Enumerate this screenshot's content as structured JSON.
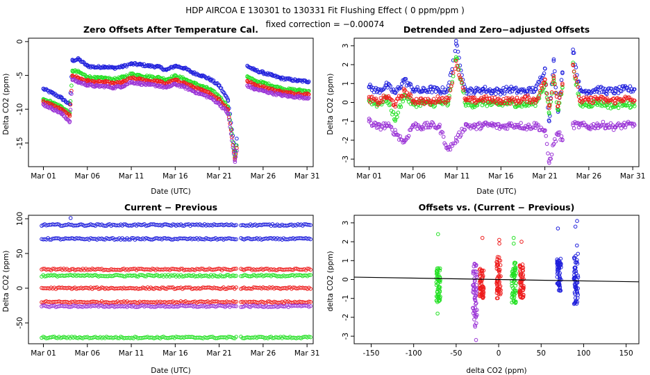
{
  "figure": {
    "title_line1": "HDP    AIRCOA E    130301 to 130331    Fit Flushing Effect ( 0 ppm/ppm )",
    "title_line2": "fixed correction = −0.00074"
  },
  "colors": {
    "blue": "#1f1fdc",
    "green": "#22e022",
    "red": "#ee1c1c",
    "purple": "#9a33d6",
    "black": "#000000"
  },
  "chart_data": [
    {
      "id": "zero-offsets",
      "type": "scatter",
      "title": "Zero Offsets After Temperature Cal.",
      "xlabel": "Date (UTC)",
      "ylabel": "Delta CO2 (ppm)",
      "xlim": [
        -0.7,
        31.7
      ],
      "ylim": [
        -18.5,
        0.5
      ],
      "xticks": [
        1,
        6,
        11,
        16,
        21,
        26,
        31
      ],
      "xtick_labels": [
        "Mar 01",
        "Mar 06",
        "Mar 11",
        "Mar 16",
        "Mar 21",
        "Mar 26",
        "Mar 31"
      ],
      "yticks": [
        0,
        -5,
        -10,
        -15
      ],
      "ytick_labels": [
        "0",
        "-5",
        "-10",
        "-15"
      ],
      "series": [
        {
          "name": "blue",
          "color": "#1f1fdc",
          "x": [
            1,
            2,
            3,
            4,
            4.3,
            5,
            6,
            7,
            8,
            9,
            10,
            11,
            12,
            13,
            14,
            15,
            16,
            17,
            18,
            19,
            20,
            21,
            22,
            22.8,
            24.2,
            25,
            26,
            27,
            28,
            29,
            30,
            31.2
          ],
          "y": [
            -7.0,
            -7.6,
            -8.3,
            -9.3,
            -2.8,
            -2.6,
            -3.6,
            -3.8,
            -3.7,
            -3.9,
            -3.7,
            -3.3,
            -3.4,
            -3.6,
            -3.7,
            -4.2,
            -3.6,
            -3.9,
            -4.6,
            -5.0,
            -5.6,
            -6.5,
            -8.6,
            -16.2,
            -3.6,
            -4.2,
            -4.6,
            -5.0,
            -5.4,
            -5.6,
            -5.8,
            -5.9
          ]
        },
        {
          "name": "green",
          "color": "#22e022",
          "x": [
            1,
            2,
            3,
            4,
            4.3,
            5,
            6,
            7,
            8,
            9,
            10,
            11,
            12,
            13,
            14,
            15,
            16,
            17,
            18,
            19,
            20,
            21,
            22,
            22.8,
            24.2,
            25,
            26,
            27,
            28,
            29,
            30,
            31.2
          ],
          "y": [
            -8.5,
            -9.0,
            -9.6,
            -10.6,
            -4.3,
            -4.5,
            -5.2,
            -5.4,
            -5.4,
            -5.6,
            -5.3,
            -4.8,
            -5.0,
            -5.2,
            -5.3,
            -5.6,
            -5.1,
            -5.5,
            -6.1,
            -6.6,
            -7.1,
            -8.1,
            -9.6,
            -17.0,
            -5.2,
            -5.8,
            -6.1,
            -6.5,
            -6.9,
            -7.1,
            -7.2,
            -7.3
          ]
        },
        {
          "name": "red",
          "color": "#ee1c1c",
          "x": [
            1,
            2,
            3,
            4,
            4.3,
            5,
            6,
            7,
            8,
            9,
            10,
            11,
            12,
            13,
            14,
            15,
            16,
            17,
            18,
            19,
            20,
            21,
            22,
            22.8,
            24.2,
            25,
            26,
            27,
            28,
            29,
            30,
            31.2
          ],
          "y": [
            -8.9,
            -9.4,
            -10.0,
            -11.0,
            -5.0,
            -5.4,
            -5.8,
            -6.0,
            -6.0,
            -6.2,
            -6.0,
            -5.4,
            -5.6,
            -5.8,
            -5.9,
            -6.2,
            -5.7,
            -6.1,
            -6.7,
            -7.2,
            -7.7,
            -8.6,
            -10.0,
            -17.4,
            -5.8,
            -6.4,
            -6.7,
            -7.1,
            -7.4,
            -7.6,
            -7.7,
            -7.8
          ]
        },
        {
          "name": "purple",
          "color": "#9a33d6",
          "x": [
            1,
            2,
            3,
            4,
            4.3,
            5,
            6,
            7,
            8,
            9,
            10,
            11,
            12,
            13,
            14,
            15,
            16,
            17,
            18,
            19,
            20,
            21,
            22,
            22.8,
            24.2,
            25,
            26,
            27,
            28,
            29,
            30,
            31.2
          ],
          "y": [
            -9.3,
            -9.9,
            -10.6,
            -11.8,
            -5.6,
            -6.0,
            -6.4,
            -6.6,
            -6.6,
            -6.8,
            -6.6,
            -6.0,
            -6.2,
            -6.4,
            -6.5,
            -6.8,
            -6.3,
            -6.7,
            -7.3,
            -7.8,
            -8.3,
            -9.2,
            -10.6,
            -17.8,
            -6.5,
            -7.0,
            -7.3,
            -7.6,
            -7.9,
            -8.1,
            -8.2,
            -8.3
          ]
        }
      ]
    },
    {
      "id": "detrended-offsets",
      "type": "scatter",
      "title": "Detrended and Zero−adjusted Offsets",
      "xlabel": "Date (UTC)",
      "ylabel": "Delta CO2 (ppm)",
      "xlim": [
        -0.7,
        31.7
      ],
      "ylim": [
        -3.4,
        3.4
      ],
      "xticks": [
        1,
        6,
        11,
        16,
        21,
        26,
        31
      ],
      "xtick_labels": [
        "Mar 01",
        "Mar 06",
        "Mar 11",
        "Mar 16",
        "Mar 21",
        "Mar 26",
        "Mar 31"
      ],
      "yticks": [
        3,
        2,
        1,
        0,
        -1,
        -2,
        -3
      ],
      "ytick_labels": [
        "3",
        "2",
        "1",
        "0",
        "-1",
        "-2",
        "-3"
      ],
      "series": [
        {
          "name": "blue",
          "color": "#1f1fdc",
          "x": [
            1,
            2,
            3,
            4,
            5,
            6,
            7,
            8,
            9,
            10,
            10.9,
            12,
            13,
            14,
            15,
            16,
            17,
            18,
            19,
            20,
            21,
            21.5,
            22,
            22.5,
            23,
            24.2,
            25,
            26,
            27,
            28,
            29,
            30,
            31.2
          ],
          "y": [
            0.8,
            0.6,
            0.9,
            0.5,
            1.2,
            0.7,
            0.6,
            0.7,
            0.6,
            0.7,
            3.1,
            0.6,
            0.6,
            0.7,
            0.6,
            0.6,
            0.7,
            0.6,
            0.6,
            0.7,
            1.8,
            -1.0,
            2.2,
            -0.5,
            1.6,
            2.8,
            0.6,
            0.6,
            0.7,
            0.6,
            0.6,
            0.7,
            0.7
          ]
        },
        {
          "name": "green",
          "color": "#22e022",
          "x": [
            1,
            2,
            3,
            4,
            5,
            6,
            7,
            8,
            9,
            10,
            10.9,
            12,
            13,
            14,
            15,
            16,
            17,
            18,
            19,
            20,
            21,
            21.5,
            22,
            22.5,
            23,
            24.2,
            25,
            26,
            27,
            28,
            29,
            30,
            31.2
          ],
          "y": [
            0.1,
            -0.1,
            0.2,
            -0.9,
            0.4,
            -0.1,
            0.0,
            -0.1,
            0.0,
            -0.1,
            2.4,
            -0.1,
            -0.1,
            0.0,
            -0.1,
            -0.1,
            0.0,
            -0.1,
            -0.1,
            0.0,
            1.0,
            -0.6,
            1.3,
            -0.4,
            0.8,
            2.0,
            -0.1,
            -0.1,
            0.0,
            -0.1,
            -0.2,
            0.0,
            -0.2
          ]
        },
        {
          "name": "red",
          "color": "#ee1c1c",
          "x": [
            1,
            2,
            3,
            4,
            5,
            6,
            7,
            8,
            9,
            10,
            10.9,
            12,
            13,
            14,
            15,
            16,
            17,
            18,
            19,
            20,
            21,
            21.5,
            22,
            22.5,
            23,
            24.2,
            25,
            26,
            27,
            28,
            29,
            30,
            31.2
          ],
          "y": [
            0.2,
            0.0,
            0.3,
            -0.1,
            0.6,
            0.1,
            0.1,
            0.0,
            0.2,
            0.1,
            2.2,
            0.1,
            0.1,
            0.2,
            0.1,
            0.1,
            0.1,
            0.1,
            0.2,
            0.1,
            1.2,
            -0.3,
            1.4,
            -0.2,
            1.0,
            2.0,
            0.1,
            0.1,
            0.2,
            0.1,
            0.1,
            0.2,
            0.1
          ]
        },
        {
          "name": "purple",
          "color": "#9a33d6",
          "x": [
            1,
            2,
            3,
            4,
            5,
            6,
            7,
            8,
            9,
            10,
            10.9,
            12,
            13,
            14,
            15,
            16,
            17,
            18,
            19,
            20,
            21,
            21.5,
            22,
            22.5,
            23,
            24.2,
            25,
            26,
            27,
            28,
            29,
            30,
            31.2
          ],
          "y": [
            -1.0,
            -1.3,
            -1.2,
            -1.6,
            -2.1,
            -1.2,
            -1.3,
            -1.2,
            -1.3,
            -2.5,
            -2.0,
            -1.2,
            -1.3,
            -1.2,
            -1.2,
            -1.3,
            -1.2,
            -1.2,
            -1.3,
            -1.2,
            -1.5,
            -3.2,
            -2.2,
            -1.6,
            -2.0,
            -1.2,
            -1.2,
            -1.3,
            -1.2,
            -1.2,
            -1.3,
            -1.2,
            -1.2
          ]
        }
      ]
    },
    {
      "id": "current-previous",
      "type": "scatter",
      "title": "Current − Previous",
      "xlabel": "Date (UTC)",
      "ylabel": "Delta CO2 (ppm)",
      "xlim": [
        -0.7,
        31.7
      ],
      "ylim": [
        -80,
        105
      ],
      "xticks": [
        1,
        6,
        11,
        16,
        21,
        26,
        31
      ],
      "xtick_labels": [
        "Mar 01",
        "Mar 06",
        "Mar 11",
        "Mar 16",
        "Mar 21",
        "Mar 26",
        "Mar 31"
      ],
      "yticks": [
        100,
        50,
        0,
        -50
      ],
      "ytick_labels": [
        "100",
        "50",
        "0",
        "-50"
      ],
      "series": [
        {
          "name": "blue",
          "color": "#1f1fdc",
          "levels": [
            91,
            71
          ]
        },
        {
          "name": "red",
          "color": "#ee1c1c",
          "levels": [
            27,
            0,
            -20
          ]
        },
        {
          "name": "green",
          "color": "#22e022",
          "levels": [
            18,
            -71
          ]
        },
        {
          "name": "purple",
          "color": "#9a33d6",
          "levels": [
            -26
          ]
        }
      ],
      "gap_days": [
        23.0,
        23.4
      ],
      "outliers": [
        {
          "x": 4.1,
          "y": 101,
          "color": "#1f1fdc"
        }
      ]
    },
    {
      "id": "offsets-vs-diff",
      "type": "scatter",
      "title": "Offsets vs. (Current − Previous)",
      "xlabel": "delta CO2 (ppm)",
      "ylabel": "delta CO2 (ppm)",
      "xlim": [
        -170,
        165
      ],
      "ylim": [
        -3.4,
        3.4
      ],
      "xticks": [
        -150,
        -100,
        -50,
        0,
        50,
        100,
        150
      ],
      "xtick_labels": [
        "-150",
        "-100",
        "-50",
        "0",
        "50",
        "100",
        "150"
      ],
      "yticks": [
        3,
        2,
        1,
        0,
        -1,
        -2,
        -3
      ],
      "ytick_labels": [
        "3",
        "2",
        "1",
        "0",
        "-1",
        "-2",
        "-3"
      ],
      "clusters": [
        {
          "color": "#22e022",
          "x": -71,
          "ymin": -1.2,
          "ymax": 0.6,
          "extras": [
            2.4,
            -1.8
          ]
        },
        {
          "color": "#9a33d6",
          "x": -28,
          "ymin": -2.6,
          "ymax": 0.9,
          "extras": [
            -3.2
          ]
        },
        {
          "color": "#ee1c1c",
          "x": -20,
          "ymin": -1.0,
          "ymax": 0.6,
          "extras": [
            2.2
          ]
        },
        {
          "color": "#ee1c1c",
          "x": 0,
          "ymin": -1.0,
          "ymax": 1.2,
          "extras": [
            2.1,
            1.9
          ]
        },
        {
          "color": "#22e022",
          "x": 18,
          "ymin": -1.3,
          "ymax": 1.0,
          "extras": [
            2.2,
            1.9
          ]
        },
        {
          "color": "#ee1c1c",
          "x": 27,
          "ymin": -1.0,
          "ymax": 0.8,
          "extras": [
            2.0
          ]
        },
        {
          "color": "#1f1fdc",
          "x": 71,
          "ymin": -0.6,
          "ymax": 1.1,
          "extras": [
            2.7
          ]
        },
        {
          "color": "#1f1fdc",
          "x": 91,
          "ymin": -1.3,
          "ymax": 1.4,
          "extras": [
            3.1,
            2.8,
            1.8
          ]
        }
      ],
      "fit_line": {
        "x": [
          -170,
          165
        ],
        "y": [
          0.126,
          -0.122
        ],
        "color": "#000000"
      }
    }
  ]
}
